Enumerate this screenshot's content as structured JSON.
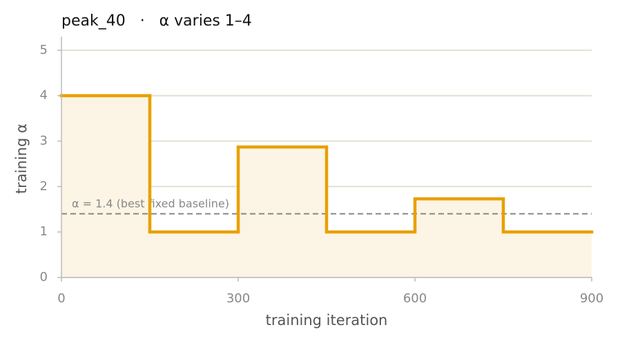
{
  "chart_data": {
    "type": "step",
    "title": "peak_40   ·   α varies 1–4",
    "x_label": "training iteration",
    "y_label": "training α",
    "x": [
      0,
      150,
      300,
      450,
      600,
      750
    ],
    "values": [
      4,
      1,
      2.87,
      1,
      1.73,
      1
    ],
    "color": "#e8a000",
    "fill_color": "#fcf4e4",
    "xlim": [
      0,
      900
    ],
    "xticks": [
      0,
      300,
      600,
      900
    ],
    "ylim": [
      0,
      5.3
    ],
    "yticks": [
      0,
      1,
      2,
      3,
      4,
      5
    ],
    "grid": true,
    "baseline": {
      "value": 1.4,
      "label": "α = 1.4 (best fixed baseline)"
    }
  }
}
